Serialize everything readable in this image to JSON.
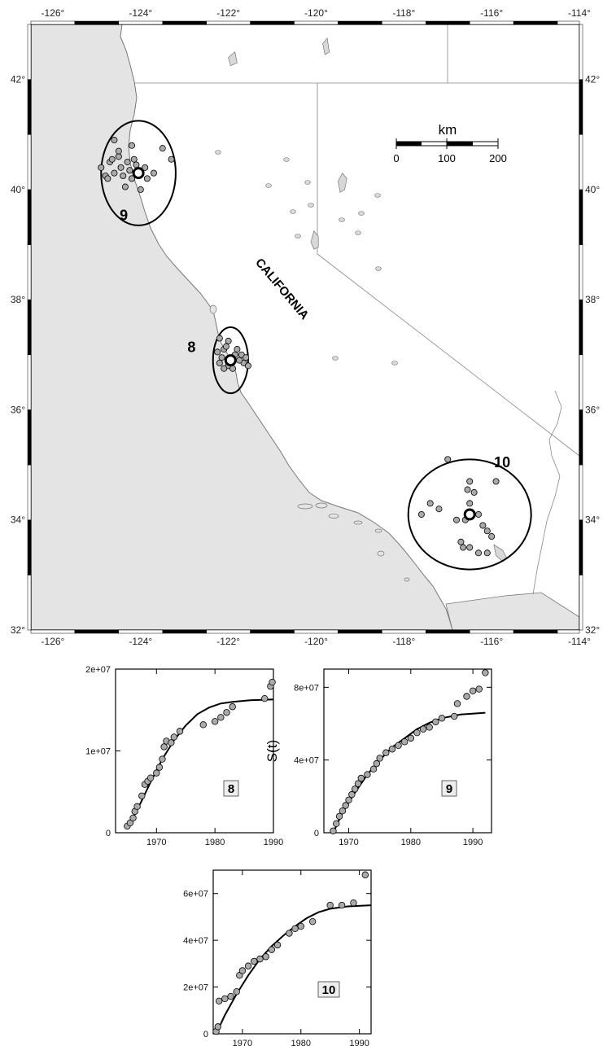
{
  "map": {
    "type": "map",
    "lon_range": [
      -126.5,
      -114
    ],
    "lat_range": [
      32,
      43
    ],
    "lon_ticks": [
      "-126°",
      "-124°",
      "-122°",
      "-120°",
      "-118°",
      "-116°",
      "-114°"
    ],
    "lat_ticks": [
      "32°",
      "34°",
      "36°",
      "38°",
      "40°",
      "42°"
    ],
    "state_label": "CALIFORNIA",
    "scale_bar": {
      "unit": "km",
      "labels": [
        "0",
        "100",
        "200"
      ]
    },
    "land_color": "#e4e4e4",
    "water_color": "#ffffff",
    "regions": [
      {
        "label": "8",
        "center": [
          -121.95,
          36.9
        ],
        "radius_lon": 0.4,
        "radius_lat": 0.6,
        "events": [
          [
            -122.2,
            37.3
          ],
          [
            -122.0,
            37.25
          ],
          [
            -121.8,
            37.1
          ],
          [
            -121.7,
            37.0
          ],
          [
            -121.6,
            36.95
          ],
          [
            -121.65,
            36.85
          ],
          [
            -121.55,
            36.8
          ],
          [
            -122.1,
            37.1
          ],
          [
            -122.15,
            36.95
          ],
          [
            -122.2,
            36.85
          ],
          [
            -122.0,
            36.8
          ],
          [
            -121.9,
            36.75
          ],
          [
            -122.05,
            37.15
          ],
          [
            -121.75,
            36.9
          ],
          [
            -121.85,
            37.0
          ],
          [
            -122.25,
            37.05
          ],
          [
            -121.95,
            36.95
          ],
          [
            -122.1,
            36.75
          ]
        ]
      },
      {
        "label": "9",
        "center": [
          -124.05,
          40.3
        ],
        "radius_lon": 0.85,
        "radius_lat": 0.95,
        "events": [
          [
            -124.9,
            40.4
          ],
          [
            -124.7,
            40.5
          ],
          [
            -124.5,
            40.6
          ],
          [
            -124.3,
            40.5
          ],
          [
            -124.1,
            40.45
          ],
          [
            -123.9,
            40.4
          ],
          [
            -123.7,
            40.3
          ],
          [
            -124.6,
            40.3
          ],
          [
            -124.4,
            40.25
          ],
          [
            -124.2,
            40.2
          ],
          [
            -124.8,
            40.25
          ],
          [
            -124.35,
            40.05
          ],
          [
            -124.5,
            40.7
          ],
          [
            -124.6,
            40.9
          ],
          [
            -124.2,
            40.8
          ],
          [
            -123.5,
            40.75
          ],
          [
            -123.3,
            40.55
          ],
          [
            -124.0,
            40.0
          ],
          [
            -124.75,
            40.2
          ],
          [
            -124.25,
            40.35
          ],
          [
            -124.45,
            40.4
          ],
          [
            -124.15,
            40.55
          ],
          [
            -124.65,
            40.55
          ],
          [
            -123.85,
            40.2
          ]
        ]
      },
      {
        "label": "10",
        "center": [
          -116.5,
          34.1
        ],
        "radius_lon": 1.4,
        "radius_lat": 1.0,
        "events": [
          [
            -117.0,
            35.1
          ],
          [
            -117.6,
            34.1
          ],
          [
            -117.4,
            34.3
          ],
          [
            -117.2,
            34.2
          ],
          [
            -116.5,
            34.7
          ],
          [
            -116.4,
            34.5
          ],
          [
            -116.5,
            34.3
          ],
          [
            -116.6,
            34.0
          ],
          [
            -116.3,
            34.1
          ],
          [
            -116.2,
            33.9
          ],
          [
            -116.1,
            33.8
          ],
          [
            -116.7,
            33.6
          ],
          [
            -116.5,
            33.5
          ],
          [
            -116.3,
            33.4
          ],
          [
            -116.1,
            33.4
          ],
          [
            -115.9,
            34.7
          ],
          [
            -116.55,
            34.55
          ],
          [
            -116.8,
            34.0
          ],
          [
            -116.65,
            33.5
          ],
          [
            -116.0,
            33.7
          ]
        ]
      }
    ],
    "lakes": [
      [
        [
          -120.05,
          39.25
        ],
        [
          -119.95,
          39.15
        ],
        [
          -119.95,
          38.95
        ],
        [
          -120.05,
          38.92
        ],
        [
          -120.12,
          39.05
        ]
      ],
      [
        [
          -119.45,
          39.95
        ],
        [
          -119.35,
          40.0
        ],
        [
          -119.3,
          40.2
        ],
        [
          -119.4,
          40.3
        ],
        [
          -119.5,
          40.15
        ]
      ],
      [
        [
          -115.95,
          33.55
        ],
        [
          -115.75,
          33.45
        ],
        [
          -115.65,
          33.3
        ],
        [
          -115.75,
          33.25
        ],
        [
          -115.9,
          33.35
        ]
      ],
      [
        [
          -119.85,
          42.65
        ],
        [
          -119.75,
          42.75
        ],
        [
          -119.7,
          42.5
        ],
        [
          -119.8,
          42.45
        ]
      ],
      [
        [
          -122.0,
          42.4
        ],
        [
          -121.85,
          42.5
        ],
        [
          -121.8,
          42.3
        ],
        [
          -121.95,
          42.25
        ]
      ]
    ]
  },
  "panels": [
    {
      "label": "8",
      "ylabel": "",
      "xticks": [
        "1970",
        "1980",
        "1990"
      ],
      "yticks": [
        "0",
        "1e+07",
        "2e+07"
      ],
      "chart_data": {
        "type": "scatter",
        "xlim": [
          1963,
          1990
        ],
        "ylim": [
          0,
          20000000
        ],
        "points": [
          [
            1965,
            800000
          ],
          [
            1965.5,
            1200000
          ],
          [
            1966,
            1800000
          ],
          [
            1966.3,
            2600000
          ],
          [
            1966.7,
            3200000
          ],
          [
            1967.5,
            4500000
          ],
          [
            1968,
            5900000
          ],
          [
            1968.5,
            6300000
          ],
          [
            1969,
            6700000
          ],
          [
            1970,
            7300000
          ],
          [
            1970.5,
            8000000
          ],
          [
            1971,
            9000000
          ],
          [
            1971.3,
            10500000
          ],
          [
            1971.7,
            11200000
          ],
          [
            1972.5,
            11000000
          ],
          [
            1973,
            11700000
          ],
          [
            1974,
            12400000
          ],
          [
            1978,
            13200000
          ],
          [
            1980,
            13600000
          ],
          [
            1981,
            14100000
          ],
          [
            1982,
            14700000
          ],
          [
            1983,
            15400000
          ],
          [
            1988.5,
            16400000
          ],
          [
            1989.5,
            17900000
          ],
          [
            1989.8,
            18400000
          ]
        ],
        "fit": [
          [
            1965,
            500000
          ],
          [
            1967,
            3200000
          ],
          [
            1969,
            6200000
          ],
          [
            1971,
            9000000
          ],
          [
            1973,
            11300000
          ],
          [
            1975,
            13100000
          ],
          [
            1977,
            14500000
          ],
          [
            1979,
            15300000
          ],
          [
            1981,
            15800000
          ],
          [
            1983,
            16000000
          ],
          [
            1986,
            16200000
          ],
          [
            1990,
            16300000
          ]
        ]
      }
    },
    {
      "label": "9",
      "ylabel": "S(t)",
      "xticks": [
        "1970",
        "1980",
        "1990"
      ],
      "yticks": [
        "0",
        "4e+07",
        "8e+07"
      ],
      "chart_data": {
        "type": "scatter",
        "xlim": [
          1966,
          1993
        ],
        "ylim": [
          0,
          90000000
        ],
        "points": [
          [
            1967.5,
            1000000
          ],
          [
            1968,
            5000000
          ],
          [
            1968.5,
            9000000
          ],
          [
            1969,
            12000000
          ],
          [
            1969.5,
            15000000
          ],
          [
            1970,
            18000000
          ],
          [
            1970.5,
            21000000
          ],
          [
            1971,
            24000000
          ],
          [
            1971.5,
            27000000
          ],
          [
            1972,
            30000000
          ],
          [
            1973,
            32000000
          ],
          [
            1974,
            35000000
          ],
          [
            1974.5,
            38000000
          ],
          [
            1975,
            41000000
          ],
          [
            1976,
            44000000
          ],
          [
            1977,
            46000000
          ],
          [
            1978,
            48000000
          ],
          [
            1979,
            50000000
          ],
          [
            1980,
            52000000
          ],
          [
            1981,
            55000000
          ],
          [
            1982,
            57000000
          ],
          [
            1983,
            58000000
          ],
          [
            1984,
            61000000
          ],
          [
            1985,
            63000000
          ],
          [
            1987,
            64000000
          ],
          [
            1987.5,
            71000000
          ],
          [
            1989,
            75000000
          ],
          [
            1990,
            78000000
          ],
          [
            1991,
            79000000
          ],
          [
            1992,
            88000000
          ]
        ],
        "fit": [
          [
            1967.5,
            0
          ],
          [
            1969,
            11000000
          ],
          [
            1971,
            22000000
          ],
          [
            1973,
            32000000
          ],
          [
            1975,
            40000000
          ],
          [
            1977,
            47000000
          ],
          [
            1979,
            52000000
          ],
          [
            1981,
            57000000
          ],
          [
            1983,
            60500000
          ],
          [
            1985,
            63000000
          ],
          [
            1988,
            65000000
          ],
          [
            1992,
            66000000
          ]
        ]
      }
    },
    {
      "label": "10",
      "ylabel": "",
      "xticks": [
        "1970",
        "1980",
        "1990"
      ],
      "yticks": [
        "0",
        "2e+07",
        "4e+07",
        "6e+07"
      ],
      "chart_data": {
        "type": "scatter",
        "xlim": [
          1965,
          1992
        ],
        "ylim": [
          0,
          70000000
        ],
        "points": [
          [
            1965.5,
            1000000
          ],
          [
            1965.8,
            3000000
          ],
          [
            1966,
            14000000
          ],
          [
            1967,
            15000000
          ],
          [
            1968,
            16000000
          ],
          [
            1969,
            18000000
          ],
          [
            1969.5,
            25000000
          ],
          [
            1970,
            27000000
          ],
          [
            1971,
            29000000
          ],
          [
            1972,
            31000000
          ],
          [
            1973,
            32000000
          ],
          [
            1974,
            33000000
          ],
          [
            1975,
            36000000
          ],
          [
            1976,
            38000000
          ],
          [
            1978,
            43000000
          ],
          [
            1979,
            45000000
          ],
          [
            1980,
            46000000
          ],
          [
            1982,
            48000000
          ],
          [
            1985,
            55000000
          ],
          [
            1987,
            55000000
          ],
          [
            1989,
            56000000
          ],
          [
            1991,
            68000000
          ]
        ],
        "fit": [
          [
            1965.5,
            0
          ],
          [
            1967,
            8000000
          ],
          [
            1969,
            17000000
          ],
          [
            1971,
            25000000
          ],
          [
            1973,
            32000000
          ],
          [
            1975,
            37500000
          ],
          [
            1977,
            42000000
          ],
          [
            1979,
            46000000
          ],
          [
            1981,
            49500000
          ],
          [
            1983,
            52000000
          ],
          [
            1985,
            53500000
          ],
          [
            1988,
            54500000
          ],
          [
            1992,
            55000000
          ]
        ]
      }
    }
  ]
}
